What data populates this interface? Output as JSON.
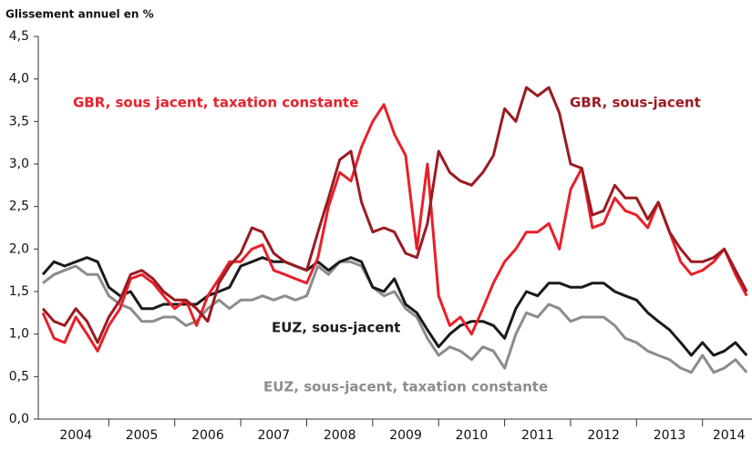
{
  "chart_data": {
    "type": "line",
    "title": "Glissement annuel en %",
    "xlim": [
      2004,
      2014.75
    ],
    "ylim": [
      0,
      4.5
    ],
    "yticks": [
      {
        "value": 0,
        "label": "0,0"
      },
      {
        "value": 0.5,
        "label": "0,5"
      },
      {
        "value": 1,
        "label": "1,0"
      },
      {
        "value": 1.5,
        "label": "1,5"
      },
      {
        "value": 2,
        "label": "2,0"
      },
      {
        "value": 2.5,
        "label": "2,5"
      },
      {
        "value": 3,
        "label": "3,0"
      },
      {
        "value": 3.5,
        "label": "3,5"
      },
      {
        "value": 4,
        "label": "4,0"
      },
      {
        "value": 4.5,
        "label": "4,5"
      }
    ],
    "xticks": [
      {
        "value": 2004.5,
        "label": "2004"
      },
      {
        "value": 2005.5,
        "label": "2005"
      },
      {
        "value": 2006.5,
        "label": "2006"
      },
      {
        "value": 2007.5,
        "label": "2007"
      },
      {
        "value": 2008.5,
        "label": "2008"
      },
      {
        "value": 2009.5,
        "label": "2009"
      },
      {
        "value": 2010.5,
        "label": "2010"
      },
      {
        "value": 2011.5,
        "label": "2011"
      },
      {
        "value": 2012.5,
        "label": "2012"
      },
      {
        "value": 2013.5,
        "label": "2013"
      },
      {
        "value": 2014.4,
        "label": "2014"
      }
    ],
    "x": [
      2004,
      2004.17,
      2004.33,
      2004.5,
      2004.67,
      2004.83,
      2005,
      2005.17,
      2005.33,
      2005.5,
      2005.67,
      2005.83,
      2006,
      2006.17,
      2006.33,
      2006.5,
      2006.67,
      2006.83,
      2007,
      2007.17,
      2007.33,
      2007.5,
      2007.67,
      2007.83,
      2008,
      2008.17,
      2008.33,
      2008.5,
      2008.67,
      2008.83,
      2009,
      2009.17,
      2009.33,
      2009.5,
      2009.67,
      2009.83,
      2010,
      2010.17,
      2010.33,
      2010.5,
      2010.67,
      2010.83,
      2011,
      2011.17,
      2011.33,
      2011.5,
      2011.67,
      2011.83,
      2012,
      2012.17,
      2012.33,
      2012.5,
      2012.67,
      2012.83,
      2013,
      2013.17,
      2013.33,
      2013.5,
      2013.67,
      2013.83,
      2014,
      2014.17,
      2014.33,
      2014.5,
      2014.67
    ],
    "series": [
      {
        "name": "GBR, sous jacent, taxation constante",
        "color": "#e8202a",
        "values": [
          1.25,
          0.95,
          0.9,
          1.2,
          1.0,
          0.8,
          1.1,
          1.3,
          1.65,
          1.7,
          1.6,
          1.45,
          1.3,
          1.4,
          1.1,
          1.45,
          1.65,
          1.85,
          1.85,
          2.0,
          2.05,
          1.75,
          1.7,
          1.65,
          1.6,
          1.9,
          2.5,
          2.9,
          2.8,
          3.2,
          3.5,
          3.7,
          3.35,
          3.1,
          2.0,
          3.0,
          1.45,
          1.1,
          1.2,
          1.0,
          1.3,
          1.6,
          1.85,
          2.0,
          2.2,
          2.2,
          2.3,
          2.0,
          2.7,
          2.95,
          2.25,
          2.3,
          2.6,
          2.45,
          2.4,
          2.25,
          2.55,
          2.2,
          1.85,
          1.7,
          1.75,
          1.85,
          2.0,
          1.7,
          1.45
        ]
      },
      {
        "name": "GBR, sous-jacent",
        "color": "#9b1b21",
        "values": [
          1.3,
          1.15,
          1.1,
          1.3,
          1.15,
          0.9,
          1.2,
          1.4,
          1.7,
          1.75,
          1.65,
          1.5,
          1.4,
          1.4,
          1.3,
          1.15,
          1.6,
          1.8,
          1.95,
          2.25,
          2.2,
          1.95,
          1.85,
          1.8,
          1.75,
          2.2,
          2.6,
          3.05,
          3.15,
          2.55,
          2.2,
          2.25,
          2.2,
          1.95,
          1.9,
          2.3,
          3.15,
          2.9,
          2.8,
          2.75,
          2.9,
          3.1,
          3.65,
          3.5,
          3.9,
          3.8,
          3.9,
          3.6,
          3.0,
          2.95,
          2.4,
          2.45,
          2.75,
          2.6,
          2.6,
          2.35,
          2.55,
          2.2,
          2.0,
          1.85,
          1.85,
          1.9,
          2.0,
          1.75,
          1.5
        ]
      },
      {
        "name": "EUZ, sous-jacent",
        "color": "#1a1a1a",
        "values": [
          1.7,
          1.85,
          1.8,
          1.85,
          1.9,
          1.85,
          1.55,
          1.45,
          1.5,
          1.3,
          1.3,
          1.35,
          1.35,
          1.35,
          1.35,
          1.45,
          1.5,
          1.55,
          1.8,
          1.85,
          1.9,
          1.85,
          1.85,
          1.8,
          1.75,
          1.85,
          1.75,
          1.85,
          1.9,
          1.85,
          1.55,
          1.5,
          1.65,
          1.35,
          1.25,
          1.05,
          0.85,
          1.0,
          1.1,
          1.15,
          1.15,
          1.1,
          0.95,
          1.3,
          1.5,
          1.45,
          1.6,
          1.6,
          1.55,
          1.55,
          1.6,
          1.6,
          1.5,
          1.45,
          1.4,
          1.25,
          1.15,
          1.05,
          0.9,
          0.75,
          0.9,
          0.75,
          0.8,
          0.9,
          0.75
        ]
      },
      {
        "name": "EUZ, sous-jacent, taxation constante",
        "color": "#8c8c8c",
        "values": [
          1.6,
          1.7,
          1.75,
          1.8,
          1.7,
          1.7,
          1.45,
          1.35,
          1.3,
          1.15,
          1.15,
          1.2,
          1.2,
          1.1,
          1.15,
          1.3,
          1.4,
          1.3,
          1.4,
          1.4,
          1.45,
          1.4,
          1.45,
          1.4,
          1.45,
          1.8,
          1.7,
          1.85,
          1.85,
          1.8,
          1.55,
          1.45,
          1.5,
          1.3,
          1.2,
          0.95,
          0.75,
          0.85,
          0.8,
          0.7,
          0.85,
          0.8,
          0.6,
          1.0,
          1.25,
          1.2,
          1.35,
          1.3,
          1.15,
          1.2,
          1.2,
          1.2,
          1.1,
          0.95,
          0.9,
          0.8,
          0.75,
          0.7,
          0.6,
          0.55,
          0.75,
          0.55,
          0.6,
          0.7,
          0.55
        ]
      }
    ]
  }
}
